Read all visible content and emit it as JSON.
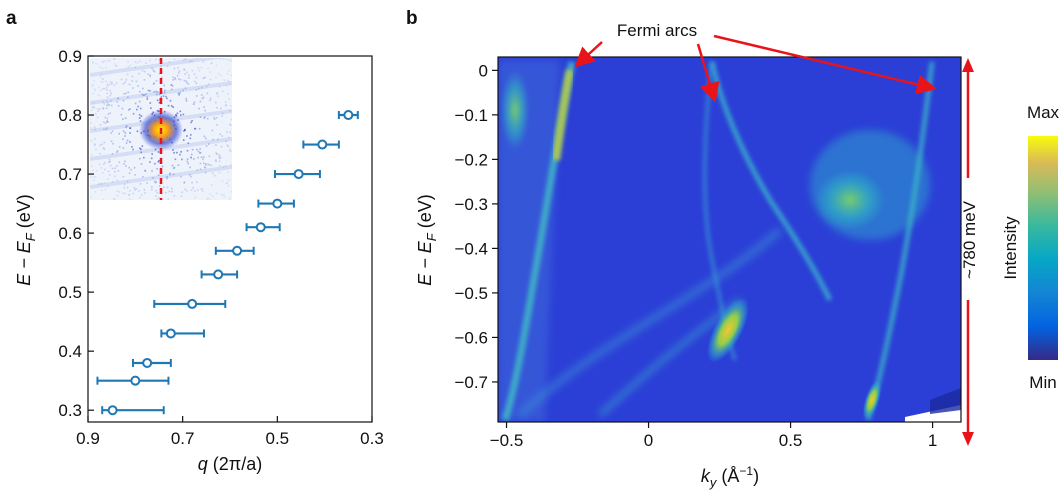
{
  "figure": {
    "panel_a_label": "a",
    "panel_b_label": "b",
    "annotation": "Fermi arcs",
    "energy_span_label": "~780 meV",
    "colorbar": {
      "label": "Intensity",
      "max_label": "Max",
      "min_label": "Min"
    },
    "colors": {
      "marker": "#1f77b4",
      "arrow": "#e8141a",
      "map_background": "#2b3fd6"
    }
  },
  "chart_data": [
    {
      "panel": "a",
      "type": "scatter",
      "xlabel_main": "q",
      "xlabel_unit": "(2π/a)",
      "ylabel_main": "E − E",
      "ylabel_sub": "F",
      "ylabel_unit": "(eV)",
      "x_reversed": true,
      "xlim": [
        0.9,
        0.3
      ],
      "ylim": [
        0.28,
        0.9
      ],
      "xticks": [
        0.9,
        0.7,
        0.5,
        0.3
      ],
      "xtick_labels": [
        "0.9",
        "0.7",
        "0.5",
        "0.3"
      ],
      "yticks": [
        0.3,
        0.4,
        0.5,
        0.6,
        0.7,
        0.8,
        0.9
      ],
      "ytick_labels": [
        "0.3",
        "0.4",
        "0.5",
        "0.6",
        "0.7",
        "0.8",
        "0.9"
      ],
      "marker": "open-circle",
      "points": [
        {
          "q": 0.848,
          "E": 0.3,
          "q_lo": 0.74,
          "q_hi": 0.87
        },
        {
          "q": 0.8,
          "E": 0.35,
          "q_lo": 0.73,
          "q_hi": 0.88
        },
        {
          "q": 0.775,
          "E": 0.38,
          "q_lo": 0.725,
          "q_hi": 0.805
        },
        {
          "q": 0.725,
          "E": 0.43,
          "q_lo": 0.655,
          "q_hi": 0.745
        },
        {
          "q": 0.68,
          "E": 0.48,
          "q_lo": 0.61,
          "q_hi": 0.76
        },
        {
          "q": 0.625,
          "E": 0.53,
          "q_lo": 0.585,
          "q_hi": 0.66
        },
        {
          "q": 0.585,
          "E": 0.57,
          "q_lo": 0.55,
          "q_hi": 0.63
        },
        {
          "q": 0.535,
          "E": 0.61,
          "q_lo": 0.495,
          "q_hi": 0.565
        },
        {
          "q": 0.5,
          "E": 0.65,
          "q_lo": 0.465,
          "q_hi": 0.54
        },
        {
          "q": 0.455,
          "E": 0.7,
          "q_lo": 0.41,
          "q_hi": 0.505
        },
        {
          "q": 0.405,
          "E": 0.75,
          "q_lo": 0.37,
          "q_hi": 0.445
        },
        {
          "q": 0.35,
          "E": 0.8,
          "q_lo": 0.33,
          "q_hi": 0.37
        }
      ],
      "inset": "Fourier-transformed quasiparticle interference map with vertical red dashed line"
    },
    {
      "panel": "b",
      "type": "heatmap",
      "xlabel_main": "k",
      "xlabel_sub": "y",
      "xlabel_unit_pre": "(Å",
      "xlabel_unit_sup": "−1",
      "xlabel_unit_post": ")",
      "ylabel_main": "E − E",
      "ylabel_sub": "F",
      "ylabel_unit": "(eV)",
      "xlim": [
        -0.53,
        1.1
      ],
      "ylim": [
        -0.79,
        0.03
      ],
      "xticks": [
        -0.5,
        0,
        0.5,
        1
      ],
      "xtick_labels": [
        "−0.5",
        "0",
        "0.5",
        "1"
      ],
      "yticks": [
        0,
        -0.1,
        -0.2,
        -0.3,
        -0.4,
        -0.5,
        -0.6,
        -0.7
      ],
      "ytick_labels": [
        "0",
        "−0.1",
        "−0.2",
        "−0.3",
        "−0.4",
        "−0.5",
        "−0.6",
        "−0.7"
      ],
      "energy_span_meV": 780
    }
  ]
}
